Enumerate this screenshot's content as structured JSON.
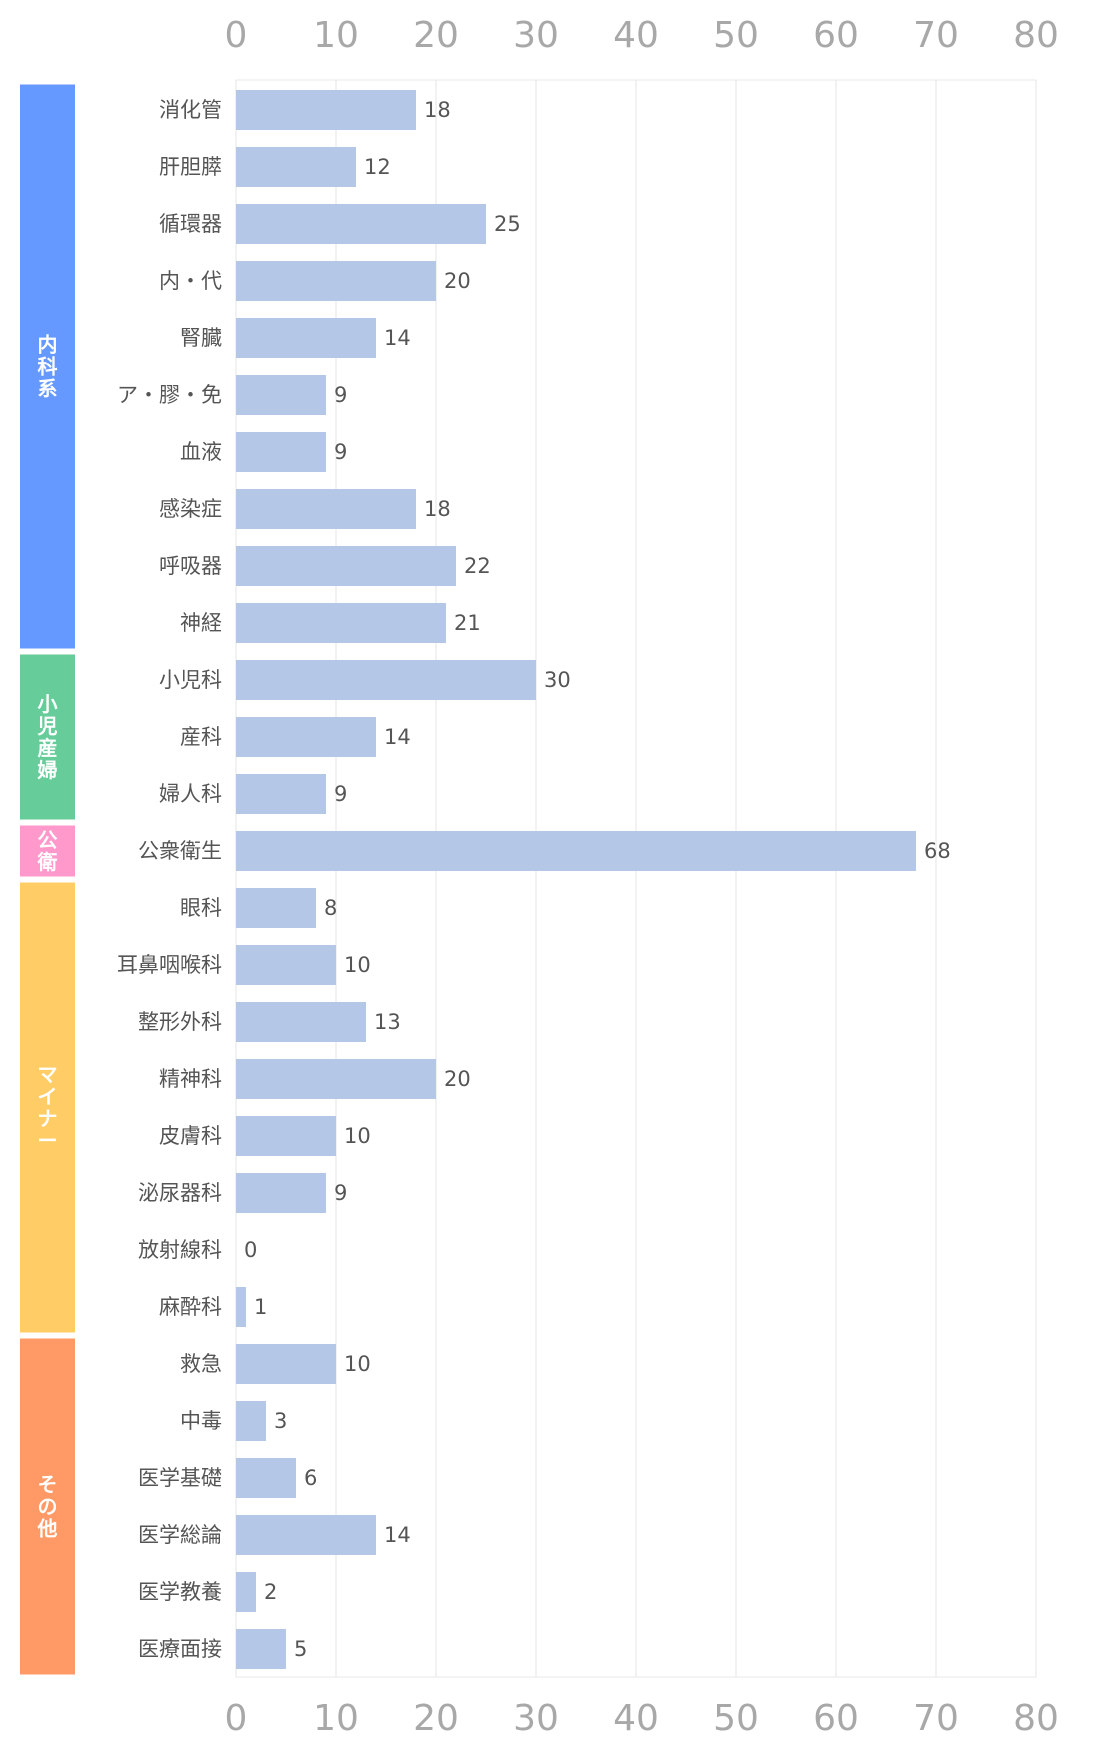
{
  "chart_data": {
    "type": "bar",
    "orientation": "horizontal",
    "xlim": [
      0,
      80
    ],
    "ticks": [
      0,
      10,
      20,
      30,
      40,
      50,
      60,
      70,
      80
    ],
    "grid": true,
    "categories": [
      "消化管",
      "肝胆膵",
      "循環器",
      "内・代",
      "腎臓",
      "ア・膠・免",
      "血液",
      "感染症",
      "呼吸器",
      "神経",
      "小児科",
      "産科",
      "婦人科",
      "公衆衛生",
      "眼科",
      "耳鼻咽喉科",
      "整形外科",
      "精神科",
      "皮膚科",
      "泌尿器科",
      "放射線科",
      "麻酔科",
      "救急",
      "中毒",
      "医学基礎",
      "医学総論",
      "医学教養",
      "医療面接"
    ],
    "values": [
      18,
      12,
      25,
      20,
      14,
      9,
      9,
      18,
      22,
      21,
      30,
      14,
      9,
      68,
      8,
      10,
      13,
      20,
      10,
      9,
      0,
      1,
      10,
      3,
      6,
      14,
      2,
      5
    ],
    "bar_color": "#b4c7e7",
    "groups": [
      {
        "label": "内科系",
        "start": 0,
        "end": 9,
        "color": "#6699ff"
      },
      {
        "label": "小児産婦",
        "start": 10,
        "end": 12,
        "color": "#66cc99"
      },
      {
        "label": "公衛",
        "start": 13,
        "end": 13,
        "color": "#ff99cc"
      },
      {
        "label": "マイナー",
        "start": 14,
        "end": 21,
        "color": "#ffcc66"
      },
      {
        "label": "その他",
        "start": 22,
        "end": 27,
        "color": "#ff9966"
      }
    ]
  }
}
